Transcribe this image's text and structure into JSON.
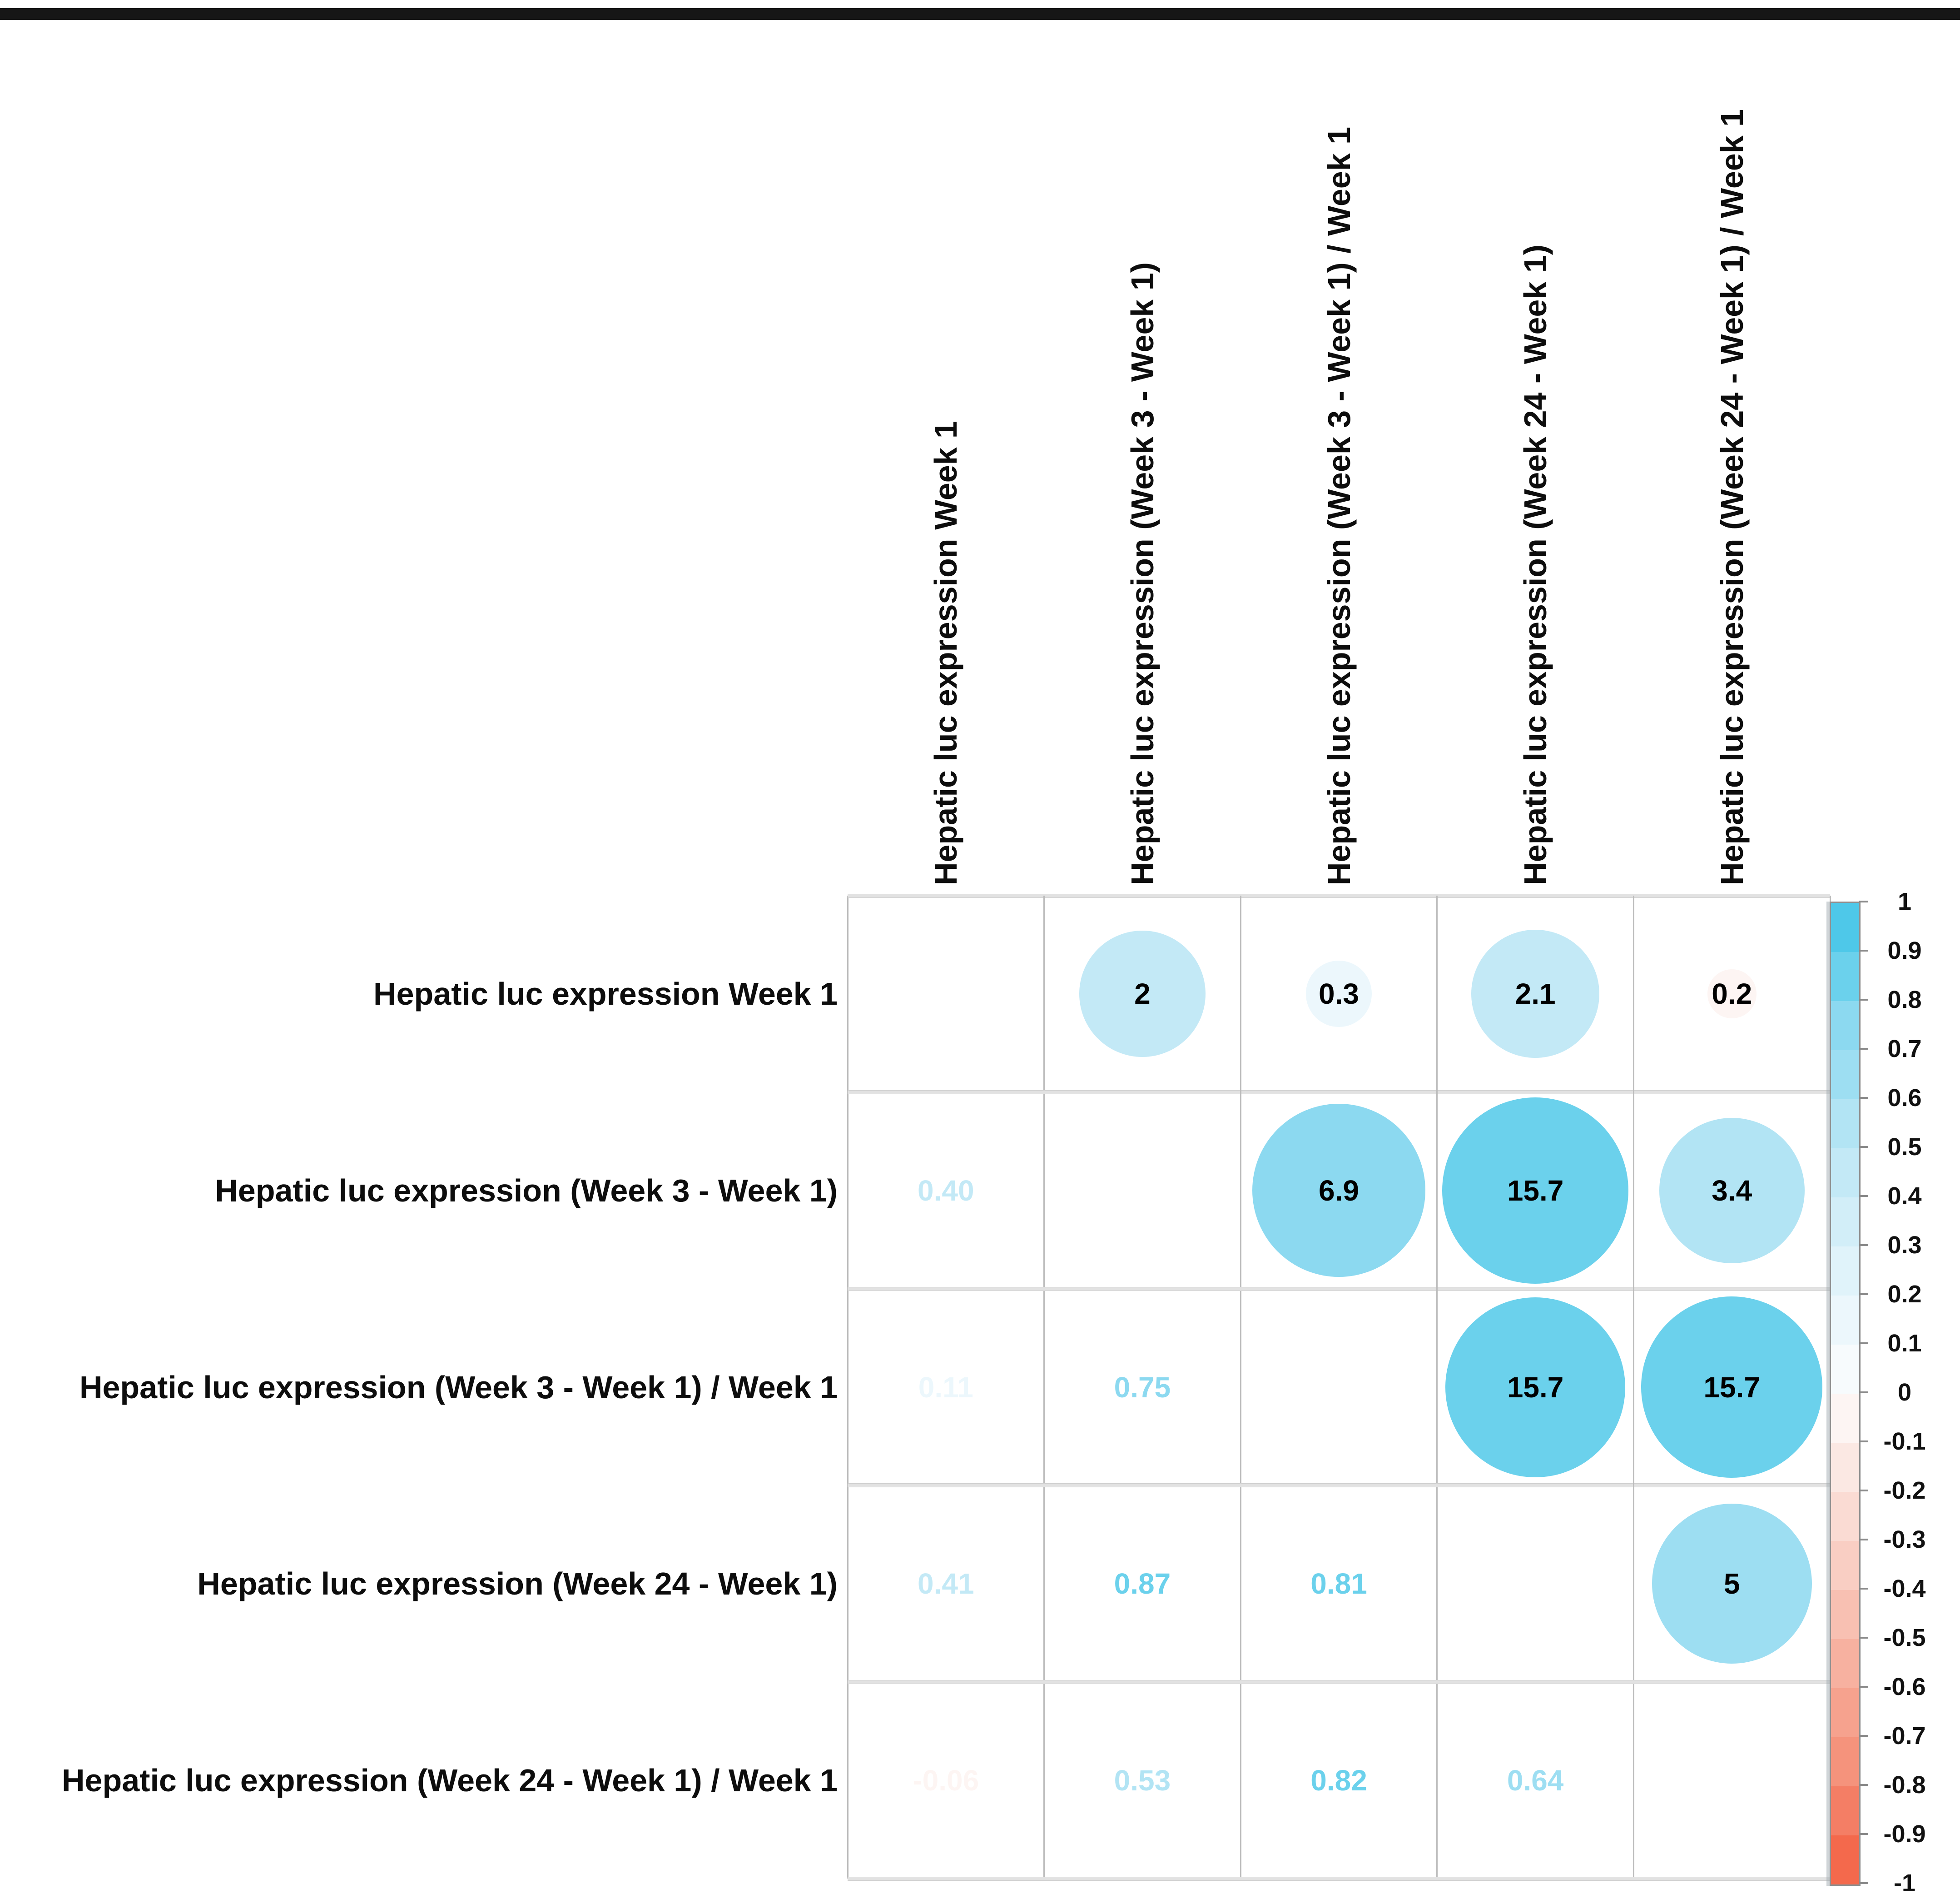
{
  "figure": {
    "description": "Correlation bubble matrix of hepatic luciferase expression measures",
    "top_rule_color": "#161616"
  },
  "chart_data": {
    "type": "heatmap",
    "subtype": "correlation-bubble-matrix",
    "variables": [
      "Hepatic luc expression Week 1",
      "Hepatic luc expression (Week 3 - Week 1)",
      "Hepatic luc expression (Week 3 - Week 1) / Week 1",
      "Hepatic luc expression (Week 24 - Week 1)",
      "Hepatic luc expression (Week 24 - Week 1) / Week 1"
    ],
    "lower_triangle_correlations": [
      {
        "row": 2,
        "col": 1,
        "display": "0.40",
        "value": 0.4
      },
      {
        "row": 3,
        "col": 1,
        "display": "0.11",
        "value": 0.11
      },
      {
        "row": 3,
        "col": 2,
        "display": "0.75",
        "value": 0.75
      },
      {
        "row": 4,
        "col": 1,
        "display": "0.41",
        "value": 0.41
      },
      {
        "row": 4,
        "col": 2,
        "display": "0.87",
        "value": 0.87
      },
      {
        "row": 4,
        "col": 3,
        "display": "0.81",
        "value": 0.81
      },
      {
        "row": 5,
        "col": 1,
        "display": "-0.06",
        "value": -0.06
      },
      {
        "row": 5,
        "col": 2,
        "display": "0.53",
        "value": 0.53
      },
      {
        "row": 5,
        "col": 3,
        "display": "0.82",
        "value": 0.82
      },
      {
        "row": 5,
        "col": 4,
        "display": "0.64",
        "value": 0.64
      }
    ],
    "upper_triangle_bubbles": [
      {
        "row": 1,
        "col": 2,
        "label": "2",
        "correlation": 0.4
      },
      {
        "row": 1,
        "col": 3,
        "label": "0.3",
        "correlation": 0.11
      },
      {
        "row": 1,
        "col": 4,
        "label": "2.1",
        "correlation": 0.41
      },
      {
        "row": 1,
        "col": 5,
        "label": "0.2",
        "correlation": -0.06
      },
      {
        "row": 2,
        "col": 3,
        "label": "6.9",
        "correlation": 0.75
      },
      {
        "row": 2,
        "col": 4,
        "label": "15.7",
        "correlation": 0.87
      },
      {
        "row": 2,
        "col": 5,
        "label": "3.4",
        "correlation": 0.53
      },
      {
        "row": 3,
        "col": 4,
        "label": "15.7",
        "correlation": 0.81
      },
      {
        "row": 3,
        "col": 5,
        "label": "15.7",
        "correlation": 0.82
      },
      {
        "row": 4,
        "col": 5,
        "label": "5",
        "correlation": 0.64
      }
    ],
    "colorbar": {
      "min": -1,
      "max": 1,
      "tick_labels": [
        "1",
        "0.9",
        "0.8",
        "0.7",
        "0.6",
        "0.5",
        "0.4",
        "0.3",
        "0.2",
        "0.1",
        "0",
        "-0.1",
        "-0.2",
        "-0.3",
        "-0.4",
        "-0.5",
        "-0.6",
        "-0.7",
        "-0.8",
        "-0.9",
        "-1"
      ],
      "steps": 20,
      "legend_position": "right"
    },
    "palette": {
      "positive_strong_to_weak": [
        "#4EC8E9",
        "#6BD1EC",
        "#8CD9F0",
        "#9DDEF2",
        "#B2E4F4",
        "#C3E9F6",
        "#D2EEF8",
        "#E0F3FA",
        "#ECF7FC",
        "#F7FBFD"
      ],
      "negative_weak_to_strong": [
        "#FDF5F3",
        "#FBE8E3",
        "#FADBD3",
        "#F9CEC3",
        "#F8C0B2",
        "#F7B1A0",
        "#F6A28E",
        "#F5937C",
        "#F47E65",
        "#F4694C"
      ],
      "positive_end": "#4EC8E9",
      "neutral": "#FFFFFF",
      "negative_end": "#F4694C"
    },
    "grid": {
      "rows": 5,
      "cols": 5,
      "diagonal_empty": true
    }
  }
}
